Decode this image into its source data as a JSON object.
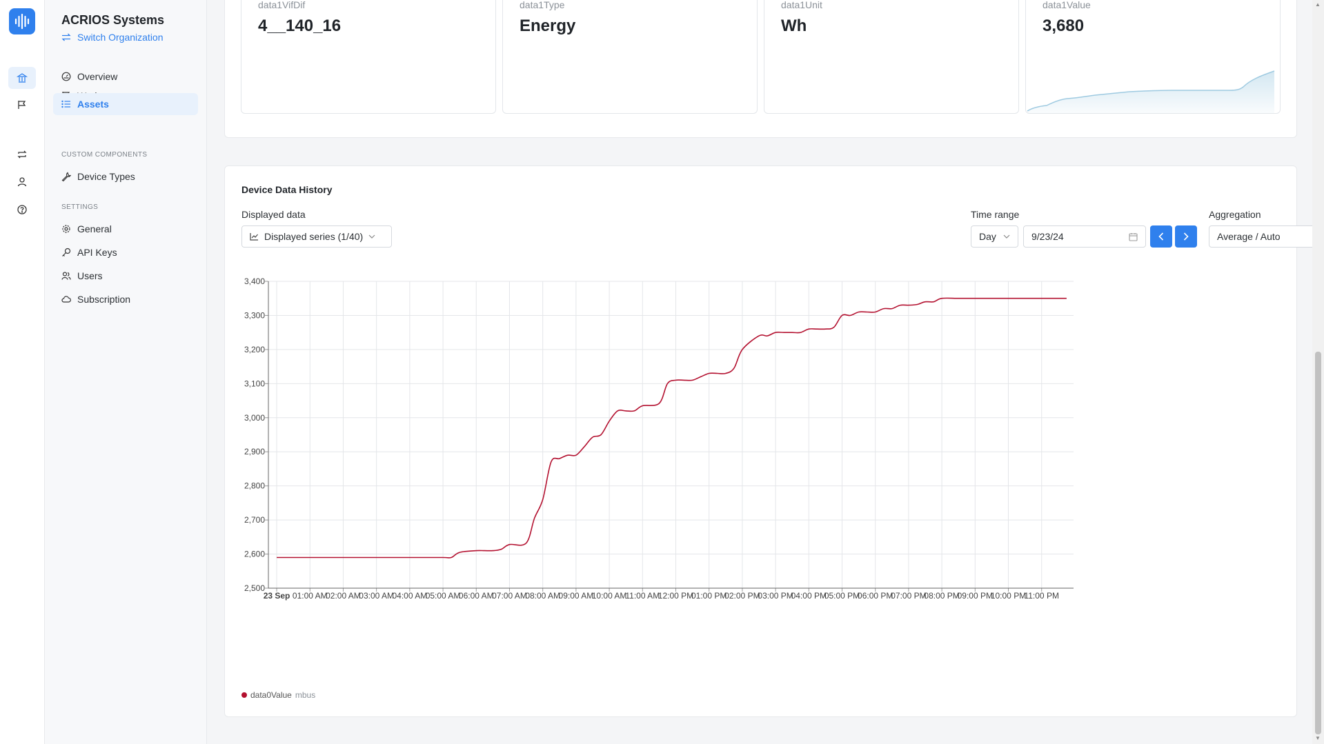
{
  "org": {
    "name": "ACRIOS Systems",
    "switch_label": "Switch Organization"
  },
  "nav": {
    "overview": "Overview",
    "workspaces": "Workspaces",
    "assets": "Assets",
    "custom_section": "CUSTOM COMPONENTS",
    "device_types": "Device Types",
    "settings_section": "SETTINGS",
    "general": "General",
    "api_keys": "API Keys",
    "users": "Users",
    "subscription": "Subscription"
  },
  "stats": [
    {
      "label": "data1VifDif",
      "value": "4__140_16"
    },
    {
      "label": "data1Type",
      "value": "Energy"
    },
    {
      "label": "data1Unit",
      "value": "Wh"
    },
    {
      "label": "data1Value",
      "value": "3,680"
    }
  ],
  "history": {
    "title": "Device Data History",
    "displayed_label": "Displayed data",
    "displayed_value": "Displayed series (1/40)",
    "time_range_label": "Time range",
    "period": "Day",
    "date": "9/23/24",
    "aggregation_label": "Aggregation",
    "aggregation_value": "Average / Auto",
    "legend_name": "data0Value",
    "legend_unit": "mbus"
  },
  "colors": {
    "accent": "#2f80ed",
    "series": "#b3102f",
    "spark": "#9ecae1"
  },
  "icons": [
    "logo-icon",
    "home-icon",
    "flag-icon",
    "repeat-icon",
    "user-icon",
    "help-icon",
    "overview-icon",
    "workspaces-icon",
    "list-icon",
    "wrench-icon",
    "gear-icon",
    "key-icon",
    "users-icon",
    "cloud-icon",
    "chart-icon",
    "calendar-icon",
    "chevron-left-icon",
    "chevron-right-icon",
    "chevron-down-icon"
  ],
  "chart_data": {
    "type": "line",
    "ylim": [
      2500,
      3400
    ],
    "yticks": [
      "2,500",
      "2,600",
      "2,700",
      "2,800",
      "2,900",
      "3,000",
      "3,100",
      "3,200",
      "3,300",
      "3,400"
    ],
    "xticks": [
      "23 Sep",
      "01:00 AM",
      "02:00 AM",
      "03:00 AM",
      "04:00 AM",
      "05:00 AM",
      "06:00 AM",
      "07:00 AM",
      "08:00 AM",
      "09:00 AM",
      "10:00 AM",
      "11:00 AM",
      "12:00 PM",
      "01:00 PM",
      "02:00 PM",
      "03:00 PM",
      "04:00 PM",
      "05:00 PM",
      "06:00 PM",
      "07:00 PM",
      "08:00 PM",
      "09:00 PM",
      "10:00 PM",
      "11:00 PM"
    ],
    "series": [
      {
        "name": "data0Value",
        "x_hours": [
          0,
          1,
          2,
          3,
          4,
          5,
          5.25,
          5.5,
          6,
          6.25,
          6.5,
          6.75,
          7.0,
          7.5,
          7.75,
          8.0,
          8.25,
          8.5,
          8.75,
          9.0,
          9.25,
          9.5,
          9.75,
          10.0,
          10.25,
          10.5,
          10.75,
          11.0,
          11.5,
          11.75,
          12.0,
          12.25,
          12.5,
          12.75,
          13.0,
          13.25,
          13.5,
          13.75,
          14.0,
          14.5,
          14.75,
          15.0,
          15.25,
          15.5,
          15.75,
          16.0,
          16.25,
          16.5,
          16.75,
          17.0,
          17.25,
          17.5,
          17.75,
          18.0,
          18.25,
          18.5,
          18.75,
          19.0,
          19.25,
          19.5,
          19.75,
          20.0,
          20.5,
          21,
          22,
          23,
          23.75
        ],
        "values": [
          2590,
          2590,
          2590,
          2590,
          2590,
          2590,
          2590,
          2605,
          2610,
          2610,
          2610,
          2614,
          2628,
          2632,
          2705,
          2760,
          2870,
          2880,
          2890,
          2890,
          2915,
          2943,
          2950,
          2990,
          3020,
          3020,
          3020,
          3035,
          3042,
          3100,
          3110,
          3110,
          3110,
          3120,
          3130,
          3130,
          3130,
          3145,
          3200,
          3240,
          3240,
          3250,
          3250,
          3250,
          3250,
          3260,
          3260,
          3260,
          3265,
          3300,
          3300,
          3310,
          3310,
          3310,
          3320,
          3320,
          3330,
          3330,
          3332,
          3340,
          3340,
          3350,
          3350,
          3350,
          3350,
          3350,
          3350
        ]
      }
    ]
  }
}
